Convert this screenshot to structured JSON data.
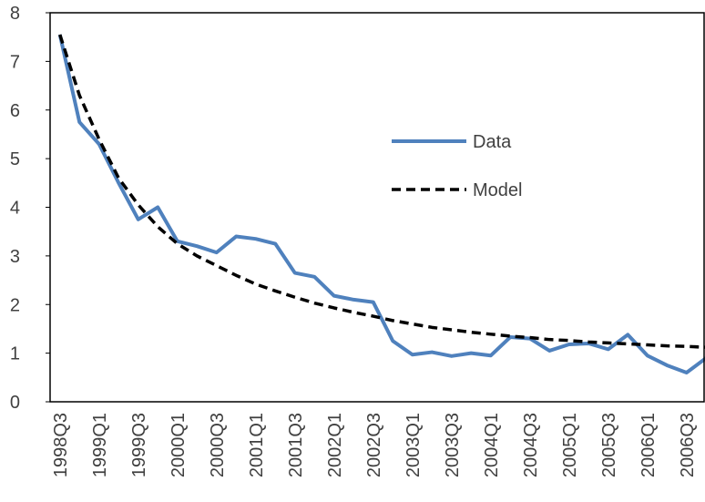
{
  "chart_data": {
    "type": "line",
    "categories": [
      "1998Q3",
      null,
      "1999Q1",
      null,
      "1999Q3",
      null,
      "2000Q1",
      null,
      "2000Q3",
      null,
      "2001Q1",
      null,
      "2001Q3",
      null,
      "2002Q1",
      null,
      "2002Q3",
      null,
      "2003Q1",
      null,
      "2003Q3",
      null,
      "2004Q1",
      null,
      "2004Q3",
      null,
      "2005Q1",
      null,
      "2005Q3",
      null,
      "2006Q1",
      null,
      "2006Q3",
      null
    ],
    "series": [
      {
        "name": "Data",
        "color": "#4f81bd",
        "dash": false,
        "values": [
          7.55,
          5.75,
          5.3,
          4.5,
          3.75,
          4.0,
          3.3,
          3.2,
          3.07,
          3.4,
          3.35,
          3.25,
          2.65,
          2.57,
          2.18,
          2.1,
          2.05,
          1.25,
          0.97,
          1.02,
          0.94,
          1.0,
          0.95,
          1.33,
          1.3,
          1.05,
          1.18,
          1.2,
          1.08,
          1.38,
          0.95,
          0.75,
          0.6,
          0.9
        ]
      },
      {
        "name": "Model",
        "color": "#000000",
        "dash": true,
        "values": [
          7.55,
          6.3,
          5.4,
          4.6,
          4.05,
          3.6,
          3.25,
          3.0,
          2.8,
          2.6,
          2.42,
          2.28,
          2.15,
          2.03,
          1.93,
          1.84,
          1.76,
          1.67,
          1.6,
          1.53,
          1.48,
          1.43,
          1.39,
          1.35,
          1.32,
          1.28,
          1.26,
          1.23,
          1.21,
          1.19,
          1.17,
          1.15,
          1.14,
          1.12
        ]
      }
    ],
    "ylim": [
      0,
      8
    ],
    "yticks": [
      0,
      1,
      2,
      3,
      4,
      5,
      6,
      7,
      8
    ],
    "grid": false
  }
}
